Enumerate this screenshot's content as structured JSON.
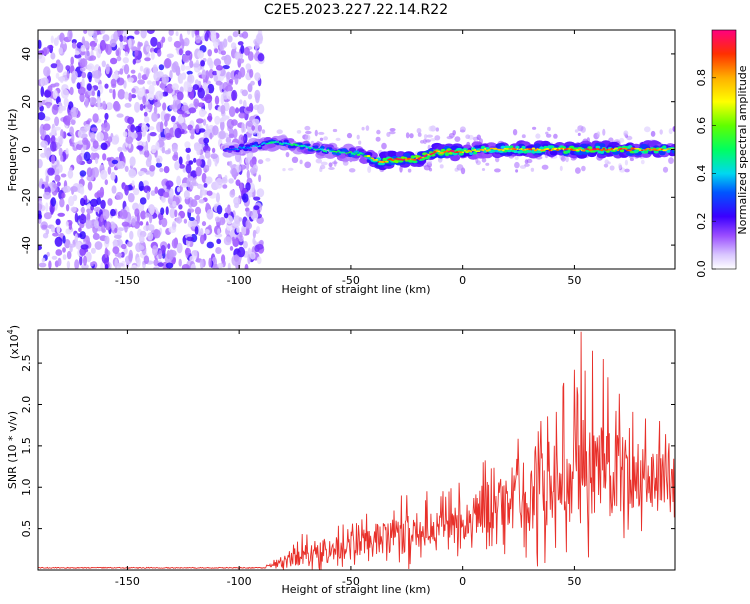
{
  "title": "C2E5.2023.227.22.14.R22",
  "chart_data": [
    {
      "type": "heatmap",
      "xlabel": "Height of straight line (km)",
      "ylabel": "Frequency (Hz)",
      "xlim": [
        -190,
        95
      ],
      "ylim": [
        -50,
        50
      ],
      "xticks": [
        -150,
        -100,
        -50,
        0,
        50
      ],
      "xtick_labels": [
        "-150",
        "-100",
        "-50",
        "0",
        "50"
      ],
      "yticks": [
        -40,
        -20,
        0,
        20,
        40
      ],
      "ytick_labels": [
        "-40",
        "-20",
        "0",
        "20",
        "40"
      ],
      "colorbar": {
        "label": "Normalized spectral amplitude",
        "range": [
          0.0,
          1.0
        ],
        "ticks": [
          0.0,
          0.2,
          0.4,
          0.6,
          0.8
        ],
        "tick_labels": [
          "0.0",
          "0.2",
          "0.4",
          "0.6",
          "0.8"
        ]
      },
      "ridge": {
        "x": [
          -105,
          -95,
          -85,
          -75,
          -65,
          -55,
          -45,
          -37,
          -30,
          -20,
          -12,
          -5,
          0,
          10,
          20,
          30,
          40,
          50,
          60,
          70,
          80,
          90,
          95
        ],
        "frequency": [
          0,
          1,
          3,
          2,
          0,
          -1,
          -2,
          -5,
          -4,
          -4,
          -1,
          -1,
          -1,
          0,
          0,
          0,
          0,
          0,
          0,
          0,
          0,
          0,
          0
        ],
        "amplitude": [
          0.3,
          0.35,
          0.45,
          0.45,
          0.45,
          0.5,
          0.55,
          0.85,
          0.9,
          0.9,
          0.85,
          0.9,
          0.75,
          0.7,
          0.75,
          0.8,
          0.8,
          0.85,
          0.85,
          0.85,
          0.8,
          0.8,
          0.6
        ]
      },
      "noise_region": {
        "x_start": -190,
        "x_end": -100,
        "amplitude": 0.15
      }
    },
    {
      "type": "line",
      "xlabel": "Height of straight line (km)",
      "ylabel": "SNR (10 * v/v)",
      "scale_note": "(x10",
      "scale_exponent": "4",
      "scale_close": ")",
      "xlim": [
        -190,
        95
      ],
      "ylim": [
        0,
        2.9
      ],
      "xticks": [
        -150,
        -100,
        -50,
        0,
        50
      ],
      "xtick_labels": [
        "-150",
        "-100",
        "-50",
        "0",
        "50"
      ],
      "yticks": [
        0.5,
        1.0,
        1.5,
        2.0,
        2.5
      ],
      "ytick_labels": [
        "0.5",
        "1.0",
        "1.5",
        "2.0",
        "2.5"
      ],
      "color": "#e8302a",
      "envelope": {
        "x": [
          -190,
          -100,
          -90,
          -85,
          -75,
          -65,
          -55,
          -45,
          -35,
          -25,
          -15,
          -5,
          0,
          10,
          20,
          25,
          30,
          40,
          50,
          55,
          60,
          70,
          80,
          90,
          95
        ],
        "base": [
          0.02,
          0.02,
          0.03,
          0.06,
          0.15,
          0.2,
          0.25,
          0.3,
          0.35,
          0.4,
          0.5,
          0.55,
          0.6,
          0.7,
          0.8,
          0.85,
          0.9,
          1.0,
          1.1,
          1.1,
          1.1,
          1.1,
          1.1,
          1.1,
          1.1
        ],
        "spread": [
          0.0,
          0.0,
          0.01,
          0.05,
          0.2,
          0.25,
          0.25,
          0.3,
          0.35,
          0.4,
          0.35,
          0.4,
          0.4,
          0.5,
          0.6,
          0.7,
          0.8,
          0.9,
          1.0,
          1.0,
          0.9,
          0.8,
          0.7,
          0.6,
          0.5
        ]
      },
      "peaks": [
        {
          "x": 53,
          "y": 2.88
        },
        {
          "x": 58,
          "y": 2.65
        },
        {
          "x": 50,
          "y": 2.42
        },
        {
          "x": 63,
          "y": 2.55
        },
        {
          "x": 65,
          "y": 2.33
        }
      ]
    }
  ]
}
